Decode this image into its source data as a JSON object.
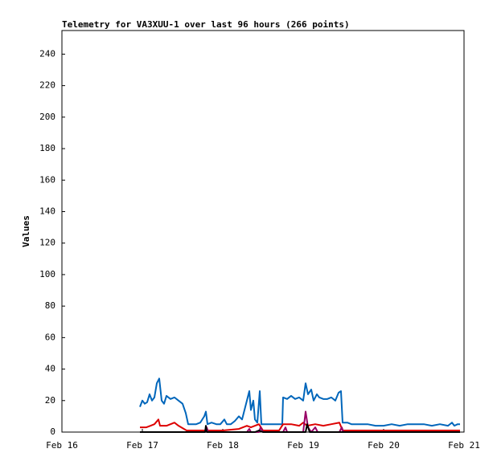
{
  "chart_data": {
    "type": "line",
    "title": "Telemetry for VA3XUU-1 over last 96 hours (266 points)",
    "y_label": "Values",
    "xlim": [
      0,
      5
    ],
    "xticks": [
      {
        "value": 0,
        "label": "Feb 16"
      },
      {
        "value": 1,
        "label": "Feb 17"
      },
      {
        "value": 2,
        "label": "Feb 18"
      },
      {
        "value": 3,
        "label": "Feb 19"
      },
      {
        "value": 4,
        "label": "Feb 20"
      },
      {
        "value": 5,
        "label": "Feb 21"
      }
    ],
    "ylim": [
      0,
      255
    ],
    "yticks": [
      0,
      20,
      40,
      60,
      80,
      100,
      120,
      140,
      160,
      180,
      200,
      220,
      240
    ],
    "grid": false,
    "series": [
      {
        "color": "#0066bb",
        "x": [
          0.97,
          1.0,
          1.03,
          1.06,
          1.09,
          1.12,
          1.15,
          1.18,
          1.21,
          1.24,
          1.27,
          1.3,
          1.35,
          1.4,
          1.45,
          1.5,
          1.54,
          1.57,
          1.62,
          1.67,
          1.72,
          1.77,
          1.79,
          1.81,
          1.86,
          1.92,
          1.97,
          2.02,
          2.05,
          2.1,
          2.15,
          2.2,
          2.24,
          2.27,
          2.3,
          2.33,
          2.35,
          2.38,
          2.4,
          2.43,
          2.46,
          2.48,
          2.55,
          2.6,
          2.65,
          2.7,
          2.74,
          2.75,
          2.8,
          2.85,
          2.9,
          2.95,
          3.0,
          3.03,
          3.06,
          3.1,
          3.13,
          3.17,
          3.2,
          3.25,
          3.3,
          3.35,
          3.4,
          3.44,
          3.47,
          3.49,
          3.55,
          3.6,
          3.65,
          3.7,
          3.8,
          3.9,
          4.0,
          4.1,
          4.2,
          4.3,
          4.4,
          4.5,
          4.6,
          4.7,
          4.8,
          4.85,
          4.88,
          4.92,
          4.95
        ],
        "values": [
          16,
          20,
          18,
          19,
          24,
          20,
          22,
          31,
          34,
          20,
          18,
          23,
          21,
          22,
          20,
          18,
          12,
          5,
          5,
          5,
          6,
          10,
          13,
          5,
          6,
          5,
          5,
          8,
          5,
          5,
          7,
          10,
          8,
          14,
          20,
          26,
          14,
          20,
          8,
          6,
          26,
          5,
          5,
          5,
          5,
          5,
          5,
          22,
          21,
          23,
          21,
          22,
          20,
          31,
          24,
          27,
          20,
          24,
          22,
          21,
          21,
          22,
          20,
          25,
          26,
          6,
          6,
          5,
          5,
          5,
          5,
          4,
          4,
          5,
          4,
          5,
          5,
          5,
          4,
          5,
          4,
          6,
          4,
          5,
          5
        ]
      },
      {
        "color": "#dd0000",
        "x": [
          0.97,
          1.05,
          1.1,
          1.15,
          1.2,
          1.22,
          1.3,
          1.35,
          1.4,
          1.45,
          1.55,
          1.65,
          1.8,
          2.0,
          2.2,
          2.3,
          2.35,
          2.45,
          2.5,
          2.7,
          2.75,
          2.85,
          2.95,
          3.0,
          3.05,
          3.15,
          3.25,
          3.35,
          3.45,
          3.49,
          3.6,
          3.8,
          4.0,
          4.5,
          4.95
        ],
        "values": [
          3,
          3,
          4,
          5,
          8,
          4,
          4,
          5,
          6,
          4,
          1,
          1,
          1,
          1,
          2,
          4,
          3,
          5,
          1,
          1,
          5,
          5,
          4,
          6,
          4,
          5,
          4,
          5,
          6,
          1,
          1,
          1,
          1,
          1,
          1
        ]
      },
      {
        "color": "#990066",
        "x": [
          0.97,
          1.5,
          1.78,
          1.8,
          1.82,
          2.3,
          2.33,
          2.35,
          2.45,
          2.47,
          2.5,
          2.75,
          2.78,
          2.8,
          3.0,
          3.03,
          3.06,
          3.1,
          3.15,
          3.18,
          3.45,
          3.48,
          3.5,
          4.95
        ],
        "values": [
          0,
          0,
          0,
          3,
          0,
          0,
          2,
          0,
          0,
          3,
          0,
          0,
          3,
          0,
          0,
          13,
          3,
          0,
          3,
          0,
          0,
          3,
          0,
          0
        ]
      },
      {
        "color": "#000000",
        "x": [
          0.97,
          1.78,
          1.79,
          1.8,
          2.4,
          2.45,
          2.5,
          3.03,
          3.05,
          3.08,
          4.95
        ],
        "values": [
          0,
          0,
          4,
          0,
          0,
          1,
          0,
          0,
          5,
          0,
          0
        ]
      }
    ]
  }
}
